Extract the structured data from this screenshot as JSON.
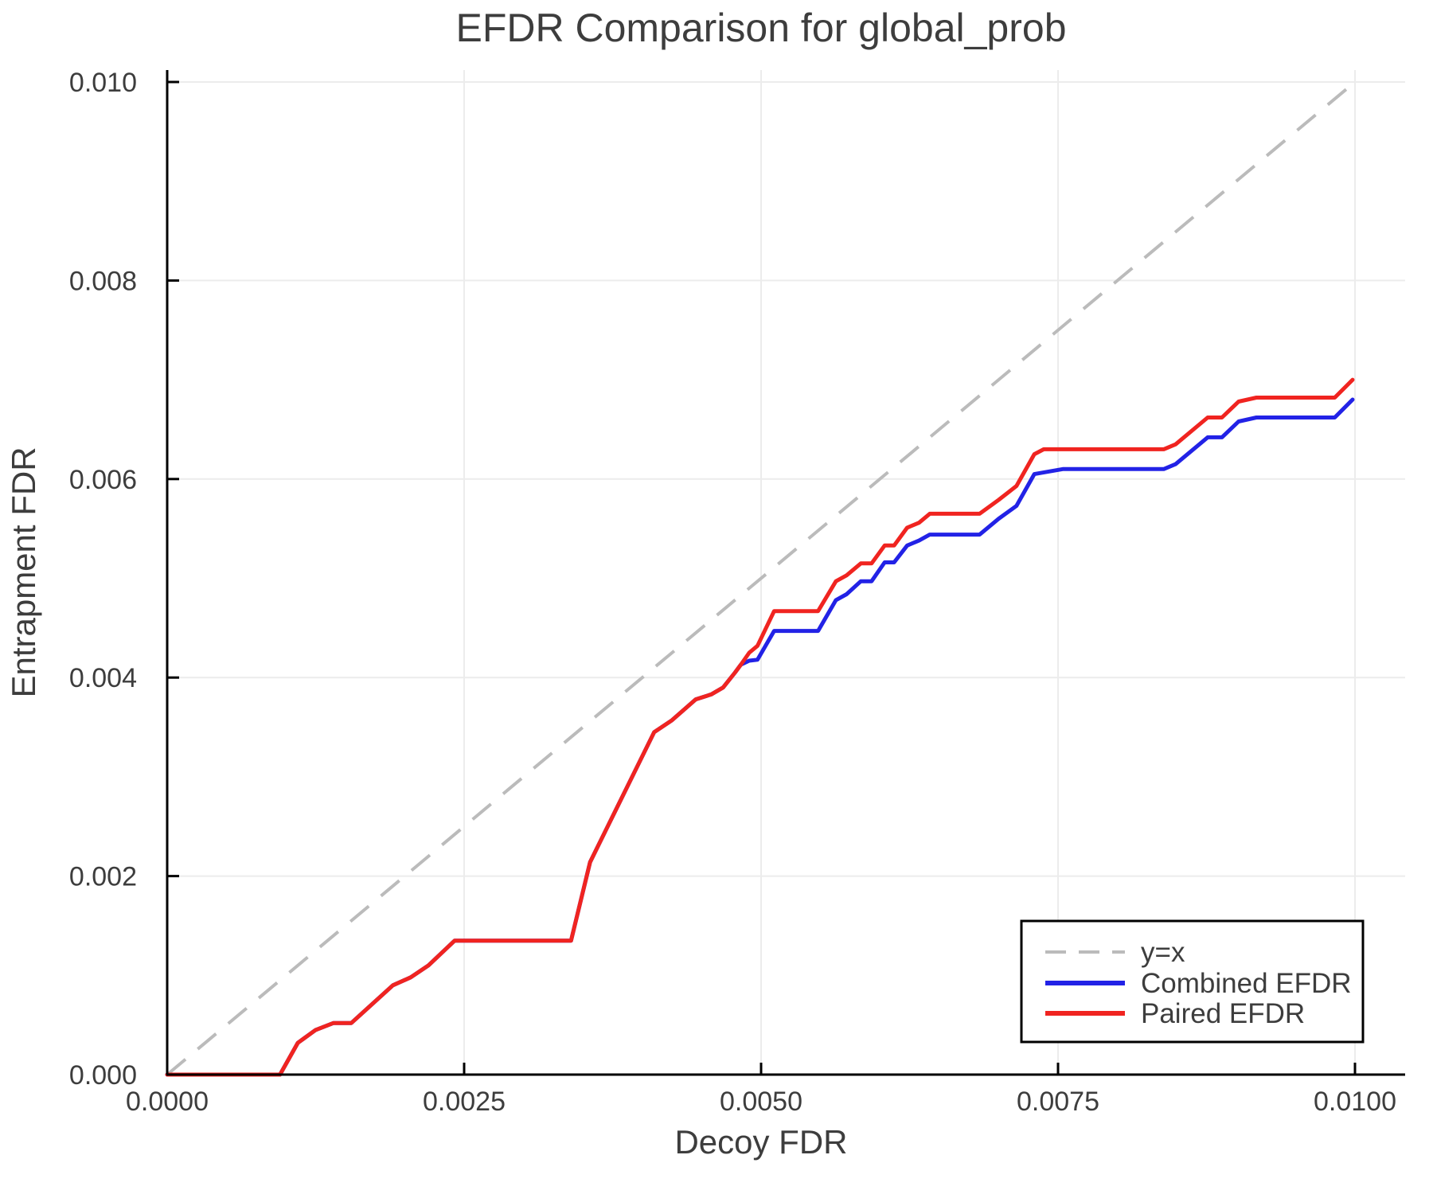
{
  "title": "EFDR Comparison for global_prob",
  "xlabel": "Decoy FDR",
  "ylabel": "Entrapment FDR",
  "colors": {
    "identity": "#bbbbbb",
    "combined": "#2222e6",
    "paired": "#f02420",
    "grid": "#ececec",
    "spine": "#000000",
    "text": "#3d3d3d",
    "legend_border": "#000000"
  },
  "legend": {
    "entries": [
      {
        "label": "y=x",
        "series": "identity",
        "style": "dashed"
      },
      {
        "label": "Combined EFDR",
        "series": "combined",
        "style": "solid"
      },
      {
        "label": "Paired EFDR",
        "series": "paired",
        "style": "solid"
      }
    ]
  },
  "chart_data": {
    "type": "line",
    "title": "EFDR Comparison for global_prob",
    "xlabel": "Decoy FDR",
    "ylabel": "Entrapment FDR",
    "xlim": [
      0.0,
      0.01
    ],
    "ylim": [
      0.0,
      0.01
    ],
    "grid": true,
    "legend_position": "bottom-right",
    "xticks": [
      {
        "value": 0.0,
        "label": "0.0000"
      },
      {
        "value": 0.0025,
        "label": "0.0025"
      },
      {
        "value": 0.005,
        "label": "0.0050"
      },
      {
        "value": 0.0075,
        "label": "0.0075"
      },
      {
        "value": 0.01,
        "label": "0.0100"
      }
    ],
    "yticks": [
      {
        "value": 0.0,
        "label": "0.000"
      },
      {
        "value": 0.002,
        "label": "0.002"
      },
      {
        "value": 0.004,
        "label": "0.004"
      },
      {
        "value": 0.006,
        "label": "0.006"
      },
      {
        "value": 0.008,
        "label": "0.008"
      },
      {
        "value": 0.01,
        "label": "0.010"
      }
    ],
    "identity_line": {
      "name": "y=x",
      "from": [
        0.0,
        0.0
      ],
      "to": [
        0.01,
        0.01
      ]
    },
    "series": [
      {
        "name": "Combined EFDR",
        "color_key": "combined",
        "points": [
          [
            0.0,
            0.0
          ],
          [
            0.00095,
            0.0
          ],
          [
            0.0011,
            0.00032
          ],
          [
            0.00125,
            0.00045
          ],
          [
            0.0014,
            0.00052
          ],
          [
            0.00155,
            0.00052
          ],
          [
            0.0019,
            0.0009
          ],
          [
            0.00205,
            0.00098
          ],
          [
            0.0022,
            0.0011
          ],
          [
            0.00242,
            0.00135
          ],
          [
            0.0034,
            0.00135
          ],
          [
            0.00356,
            0.00214
          ],
          [
            0.0041,
            0.00345
          ],
          [
            0.00425,
            0.00357
          ],
          [
            0.00445,
            0.00378
          ],
          [
            0.00458,
            0.00383
          ],
          [
            0.00468,
            0.0039
          ],
          [
            0.00478,
            0.00405
          ],
          [
            0.00483,
            0.00413
          ],
          [
            0.0049,
            0.00417
          ],
          [
            0.00497,
            0.00418
          ],
          [
            0.00511,
            0.00447
          ],
          [
            0.00548,
            0.00447
          ],
          [
            0.00563,
            0.00478
          ],
          [
            0.00572,
            0.00484
          ],
          [
            0.00584,
            0.00497
          ],
          [
            0.00593,
            0.00497
          ],
          [
            0.00604,
            0.00516
          ],
          [
            0.00612,
            0.00516
          ],
          [
            0.00623,
            0.00533
          ],
          [
            0.00633,
            0.00538
          ],
          [
            0.00642,
            0.00544
          ],
          [
            0.00684,
            0.00544
          ],
          [
            0.007,
            0.0056
          ],
          [
            0.00715,
            0.00573
          ],
          [
            0.0073,
            0.00605
          ],
          [
            0.00754,
            0.0061
          ],
          [
            0.00839,
            0.0061
          ],
          [
            0.00849,
            0.00615
          ],
          [
            0.00876,
            0.00642
          ],
          [
            0.00888,
            0.00642
          ],
          [
            0.00902,
            0.00658
          ],
          [
            0.00917,
            0.00662
          ],
          [
            0.00983,
            0.00662
          ],
          [
            0.00998,
            0.0068
          ]
        ]
      },
      {
        "name": "Paired EFDR",
        "color_key": "paired",
        "points": [
          [
            0.0,
            0.0
          ],
          [
            0.00095,
            0.0
          ],
          [
            0.0011,
            0.00032
          ],
          [
            0.00125,
            0.00045
          ],
          [
            0.0014,
            0.00052
          ],
          [
            0.00155,
            0.00052
          ],
          [
            0.0019,
            0.0009
          ],
          [
            0.00205,
            0.00098
          ],
          [
            0.0022,
            0.0011
          ],
          [
            0.00242,
            0.00135
          ],
          [
            0.0034,
            0.00135
          ],
          [
            0.00356,
            0.00214
          ],
          [
            0.0041,
            0.00345
          ],
          [
            0.00425,
            0.00357
          ],
          [
            0.00445,
            0.00378
          ],
          [
            0.00458,
            0.00383
          ],
          [
            0.00468,
            0.0039
          ],
          [
            0.00478,
            0.00405
          ],
          [
            0.00483,
            0.00413
          ],
          [
            0.0049,
            0.00425
          ],
          [
            0.00497,
            0.00432
          ],
          [
            0.00511,
            0.00467
          ],
          [
            0.00548,
            0.00467
          ],
          [
            0.00563,
            0.00497
          ],
          [
            0.00572,
            0.00503
          ],
          [
            0.00584,
            0.00515
          ],
          [
            0.00593,
            0.00515
          ],
          [
            0.00604,
            0.00533
          ],
          [
            0.00612,
            0.00533
          ],
          [
            0.00623,
            0.00551
          ],
          [
            0.00633,
            0.00556
          ],
          [
            0.00642,
            0.00565
          ],
          [
            0.00684,
            0.00565
          ],
          [
            0.007,
            0.00579
          ],
          [
            0.00715,
            0.00593
          ],
          [
            0.0073,
            0.00625
          ],
          [
            0.00738,
            0.0063
          ],
          [
            0.00839,
            0.0063
          ],
          [
            0.00849,
            0.00635
          ],
          [
            0.00876,
            0.00662
          ],
          [
            0.00888,
            0.00662
          ],
          [
            0.00902,
            0.00678
          ],
          [
            0.00917,
            0.00682
          ],
          [
            0.00983,
            0.00682
          ],
          [
            0.00998,
            0.007
          ]
        ]
      }
    ]
  }
}
